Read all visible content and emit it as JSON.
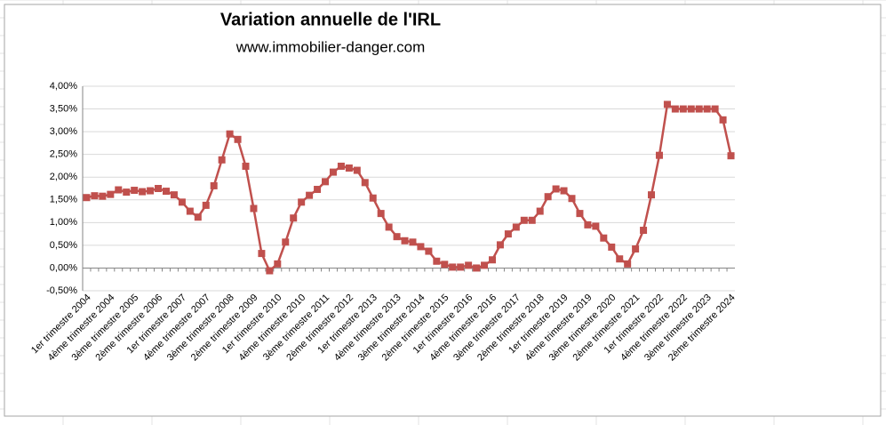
{
  "chart_data": {
    "type": "line",
    "title": "Variation annuelle de l'IRL",
    "subtitle": "www.immobilier-danger.com",
    "categories": [
      "1er trimestre 2004",
      null,
      null,
      "4ème trimestre 2004",
      null,
      null,
      "3ème trimestre 2005",
      null,
      null,
      "2ème trimestre 2006",
      null,
      null,
      "1er trimestre 2007",
      null,
      null,
      "4ème trimestre 2007",
      null,
      null,
      "3ème trimestre 2008",
      null,
      null,
      "2ème trimestre 2009",
      null,
      null,
      "1er trimestre 2010",
      null,
      null,
      "4ème trimestre 2010",
      null,
      null,
      "3ème trimestre 2011",
      null,
      null,
      "2ème trimestre 2012",
      null,
      null,
      "1er trimestre 2013",
      null,
      null,
      "4ème trimestre 2013",
      null,
      null,
      "3ème trimestre 2014",
      null,
      null,
      "2ème trimestre 2015",
      null,
      null,
      "1er trimestre 2016",
      null,
      null,
      "4ème trimestre 2016",
      null,
      null,
      "3ème trimestre 2017",
      null,
      null,
      "2ème trimestre 2018",
      null,
      null,
      "1er trimestre 2019",
      null,
      null,
      "4ème trimestre 2019",
      null,
      null,
      "3ème trimestre 2020",
      null,
      null,
      "2ème trimestre 2021",
      null,
      null,
      "1er trimestre 2022",
      null,
      null,
      "4ème trimestre 2022",
      null,
      null,
      "3ème trimestre 2023",
      null,
      null,
      "2ème trimestre 2024"
    ],
    "series": [
      {
        "color": "#c0504d",
        "values": [
          1.55,
          1.59,
          1.58,
          1.62,
          1.72,
          1.67,
          1.71,
          1.68,
          1.7,
          1.75,
          1.69,
          1.61,
          1.45,
          1.25,
          1.12,
          1.38,
          1.81,
          2.38,
          2.95,
          2.83,
          2.24,
          1.31,
          0.32,
          -0.06,
          0.09,
          0.57,
          1.1,
          1.45,
          1.6,
          1.73,
          1.9,
          2.11,
          2.24,
          2.2,
          2.15,
          1.88,
          1.54,
          1.2,
          0.9,
          0.69,
          0.6,
          0.57,
          0.47,
          0.37,
          0.15,
          0.08,
          0.02,
          0.02,
          0.06,
          0.0,
          0.06,
          0.18,
          0.51,
          0.75,
          0.9,
          1.05,
          1.05,
          1.25,
          1.57,
          1.74,
          1.7,
          1.53,
          1.2,
          0.95,
          0.92,
          0.66,
          0.46,
          0.2,
          0.09,
          0.42,
          0.83,
          1.61,
          2.48,
          3.6,
          3.5,
          3.5,
          3.5,
          3.5,
          3.5,
          3.5,
          3.26,
          2.47
        ]
      }
    ],
    "ylim": [
      -0.5,
      4
    ],
    "yticks": [
      {
        "value": -0.5,
        "label": "-0,50%"
      },
      {
        "value": 0,
        "label": "0,00%"
      },
      {
        "value": 0.5,
        "label": "0,50%"
      },
      {
        "value": 1,
        "label": "1,00%"
      },
      {
        "value": 1.5,
        "label": "1,50%"
      },
      {
        "value": 2,
        "label": "2,00%"
      },
      {
        "value": 2.5,
        "label": "2,50%"
      },
      {
        "value": 3,
        "label": "3,00%"
      },
      {
        "value": 3.5,
        "label": "3,50%"
      },
      {
        "value": 4,
        "label": "4,00%"
      }
    ],
    "grid": true
  }
}
